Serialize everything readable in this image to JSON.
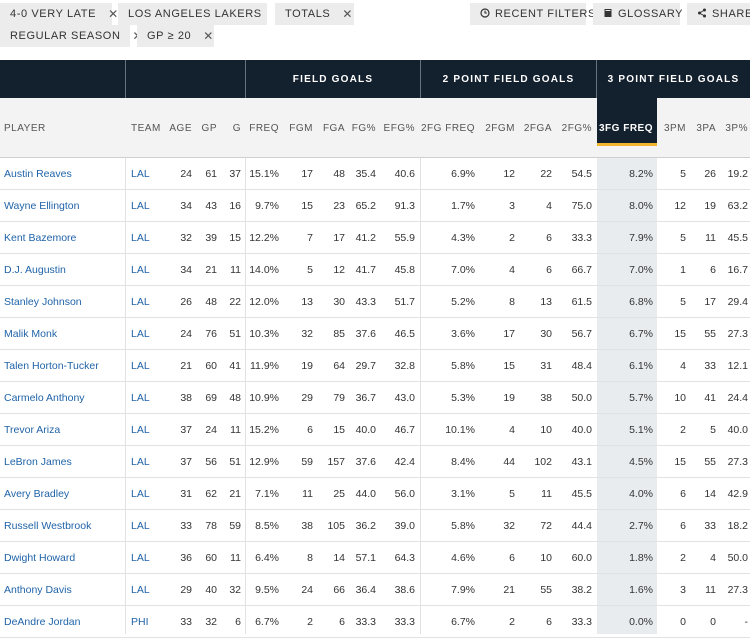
{
  "filters": {
    "row1": [
      {
        "label": "4-0 VERY LATE",
        "remove": "✕"
      },
      {
        "label": "LOS ANGELES LAKERS",
        "remove": "✕"
      },
      {
        "label": "TOTALS",
        "remove": "✕"
      }
    ],
    "row2": [
      {
        "label": "REGULAR SEASON",
        "remove": "✕"
      },
      {
        "label": "GP ≥ 20",
        "remove": "✕"
      }
    ]
  },
  "actions": {
    "recent_filters": "RECENT FILTERS",
    "glossary": "GLOSSARY",
    "share": "SHARE"
  },
  "groups": {
    "field_goals": "FIELD GOALS",
    "two_point": "2 POINT FIELD GOALS",
    "three_point": "3 POINT FIELD GOALS"
  },
  "columns": [
    "PLAYER",
    "TEAM",
    "AGE",
    "GP",
    "G",
    "FREQ",
    "FGM",
    "FGA",
    "FG%",
    "EFG%",
    "2FG FREQ",
    "2FGM",
    "2FGA",
    "2FG%",
    "3FG FREQ",
    "3PM",
    "3PA",
    "3P%"
  ],
  "rows": [
    [
      "Austin Reaves",
      "LAL",
      "24",
      "61",
      "37",
      "15.1%",
      "17",
      "48",
      "35.4",
      "40.6",
      "6.9%",
      "12",
      "22",
      "54.5",
      "8.2%",
      "5",
      "26",
      "19.2"
    ],
    [
      "Wayne Ellington",
      "LAL",
      "34",
      "43",
      "16",
      "9.7%",
      "15",
      "23",
      "65.2",
      "91.3",
      "1.7%",
      "3",
      "4",
      "75.0",
      "8.0%",
      "12",
      "19",
      "63.2"
    ],
    [
      "Kent Bazemore",
      "LAL",
      "32",
      "39",
      "15",
      "12.2%",
      "7",
      "17",
      "41.2",
      "55.9",
      "4.3%",
      "2",
      "6",
      "33.3",
      "7.9%",
      "5",
      "11",
      "45.5"
    ],
    [
      "D.J. Augustin",
      "LAL",
      "34",
      "21",
      "11",
      "14.0%",
      "5",
      "12",
      "41.7",
      "45.8",
      "7.0%",
      "4",
      "6",
      "66.7",
      "7.0%",
      "1",
      "6",
      "16.7"
    ],
    [
      "Stanley Johnson",
      "LAL",
      "26",
      "48",
      "22",
      "12.0%",
      "13",
      "30",
      "43.3",
      "51.7",
      "5.2%",
      "8",
      "13",
      "61.5",
      "6.8%",
      "5",
      "17",
      "29.4"
    ],
    [
      "Malik Monk",
      "LAL",
      "24",
      "76",
      "51",
      "10.3%",
      "32",
      "85",
      "37.6",
      "46.5",
      "3.6%",
      "17",
      "30",
      "56.7",
      "6.7%",
      "15",
      "55",
      "27.3"
    ],
    [
      "Talen Horton-Tucker",
      "LAL",
      "21",
      "60",
      "41",
      "11.9%",
      "19",
      "64",
      "29.7",
      "32.8",
      "5.8%",
      "15",
      "31",
      "48.4",
      "6.1%",
      "4",
      "33",
      "12.1"
    ],
    [
      "Carmelo Anthony",
      "LAL",
      "38",
      "69",
      "48",
      "10.9%",
      "29",
      "79",
      "36.7",
      "43.0",
      "5.3%",
      "19",
      "38",
      "50.0",
      "5.7%",
      "10",
      "41",
      "24.4"
    ],
    [
      "Trevor Ariza",
      "LAL",
      "37",
      "24",
      "11",
      "15.2%",
      "6",
      "15",
      "40.0",
      "46.7",
      "10.1%",
      "4",
      "10",
      "40.0",
      "5.1%",
      "2",
      "5",
      "40.0"
    ],
    [
      "LeBron James",
      "LAL",
      "37",
      "56",
      "51",
      "12.9%",
      "59",
      "157",
      "37.6",
      "42.4",
      "8.4%",
      "44",
      "102",
      "43.1",
      "4.5%",
      "15",
      "55",
      "27.3"
    ],
    [
      "Avery Bradley",
      "LAL",
      "31",
      "62",
      "21",
      "7.1%",
      "11",
      "25",
      "44.0",
      "56.0",
      "3.1%",
      "5",
      "11",
      "45.5",
      "4.0%",
      "6",
      "14",
      "42.9"
    ],
    [
      "Russell Westbrook",
      "LAL",
      "33",
      "78",
      "59",
      "8.5%",
      "38",
      "105",
      "36.2",
      "39.0",
      "5.8%",
      "32",
      "72",
      "44.4",
      "2.7%",
      "6",
      "33",
      "18.2"
    ],
    [
      "Dwight Howard",
      "LAL",
      "36",
      "60",
      "11",
      "6.4%",
      "8",
      "14",
      "57.1",
      "64.3",
      "4.6%",
      "6",
      "10",
      "60.0",
      "1.8%",
      "2",
      "4",
      "50.0"
    ],
    [
      "Anthony Davis",
      "LAL",
      "29",
      "40",
      "32",
      "9.5%",
      "24",
      "66",
      "36.4",
      "38.6",
      "7.9%",
      "21",
      "55",
      "38.2",
      "1.6%",
      "3",
      "11",
      "27.3"
    ],
    [
      "DeAndre Jordan",
      "PHI",
      "33",
      "32",
      "6",
      "6.7%",
      "2",
      "6",
      "33.3",
      "33.3",
      "6.7%",
      "2",
      "6",
      "33.3",
      "0.0%",
      "0",
      "0",
      "-"
    ]
  ],
  "colors": {
    "header_dark": "#13202e",
    "sort_accent": "#f0b52c",
    "link": "#1f63a8",
    "chip_bg": "#ececec"
  }
}
